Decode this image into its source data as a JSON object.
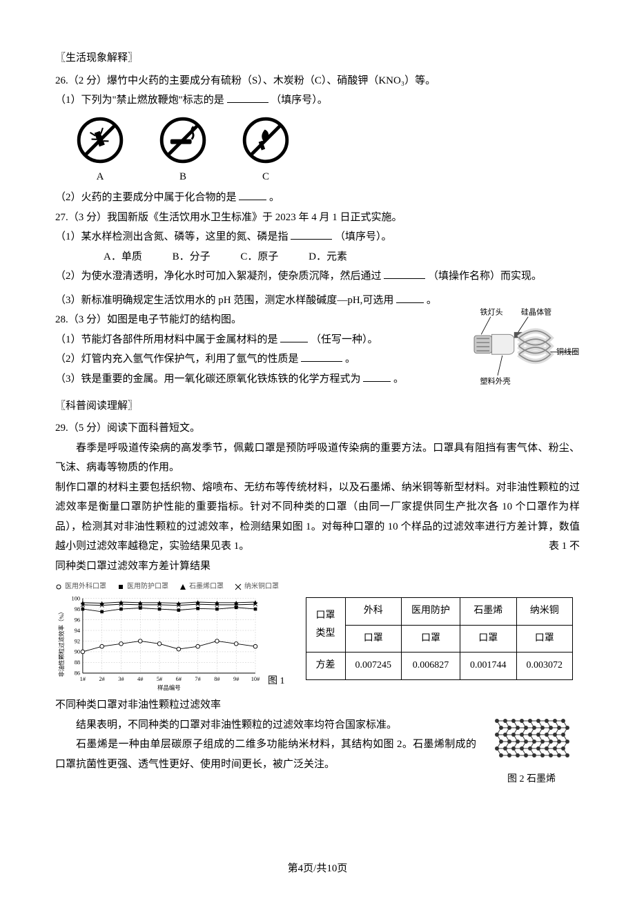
{
  "section1_title": "〖生活现象解释〗",
  "q26": {
    "stem": "26.（2 分）爆竹中火药的主要成分有硫粉（S）、木炭粉（C）、硝酸钾（KNO₃）等。",
    "sub1_pre": "（1）下列为\"禁止燃放鞭炮\"标志的是",
    "sub1_post": "（填序号）。",
    "icons": {
      "A": "A",
      "B": "B",
      "C": "C"
    },
    "sub2_pre": "（2）火药的主要成分中属于化合物的是",
    "sub2_post": "。"
  },
  "q27": {
    "stem": "27.（3 分）我国新版《生活饮用水卫生标准》于 2023 年 4 月 1 日正式实施。",
    "sub1_pre": "（1）某水样检测出含氮、磷等，这里的氮、磷是指",
    "sub1_post": "（填序号）。",
    "opts": {
      "A": "A．单质",
      "B": "B．分子",
      "C": "C．原子",
      "D": "D．元素"
    },
    "sub2_pre": "（2）为使水澄清透明，净化水时可加入絮凝剂，使杂质沉降，然后通过",
    "sub2_post": "（填操作名称）而实现。",
    "sub3_pre": "（3）新标准明确规定生活饮用水的 pH 范围，测定水样酸碱度—pH,可选用",
    "sub3_post": "。"
  },
  "q28": {
    "stem": "28.（3 分）如图是电子节能灯的结构图。",
    "sub1_pre": "（1）节能灯各部件所用材料中属于金属材料的是",
    "sub1_post": "（任写一种）。",
    "sub2_pre": "（2）灯管内充入氩气作保护气，利用了氩气的性质是",
    "sub2_post": "。",
    "sub3_pre": "（3）铁是重要的金属。用一氧化碳还原氧化铁炼铁的化学方程式为",
    "sub3_post": "。",
    "labels": {
      "iron_head": "铁灯头",
      "silicon_tube": "硅晶体管",
      "copper_coil": "铜线圈",
      "plastic_shell": "塑料外壳"
    }
  },
  "section2_title": "〖科普阅读理解〗",
  "q29": {
    "stem": "29.（5 分）阅读下面科普短文。",
    "p1": "春季是呼吸道传染病的高发季节，佩戴口罩是预防呼吸道传染病的重要方法。口罩具有阻挡有害气体、粉尘、飞沫、病毒等物质的作用。",
    "p2": "制作口罩的材料主要包括织物、熔喷布、无纺布等传统材料，以及石墨烯、纳米铜等新型材料。对非油性颗粒的过滤效率是衡量口罩防护性能的重要指标。针对不同种类的口罩（由同一厂家提供同生产批次各 10 个口罩作为样品），检测其对非油性颗粒的过滤效率，检测结果如图 1。对每种口罩的 10 个样品的过滤效率进行方差计算，数值越小则过滤效率越稳定，实验结果见表 1。",
    "table_caption_prefix": "表 1   不",
    "table_caption_rest": "同种类口罩过滤效率方差计算结果",
    "legend": {
      "l1": "医用外科口罩",
      "l2": "医用防护口罩",
      "l3": "石墨烯口罩",
      "l4": "纳米铜口罩"
    },
    "chart": {
      "type": "line",
      "ylabel": "非油性颗粒过滤效率（%）",
      "xlabel": "样品编号",
      "x_ticks": [
        "1#",
        "2#",
        "3#",
        "4#",
        "5#",
        "6#",
        "7#",
        "8#",
        "9#",
        "10#"
      ],
      "y_ticks": [
        86,
        88,
        90,
        92,
        94,
        96,
        98,
        100
      ],
      "ylim": [
        86,
        100
      ],
      "colors": {
        "axis": "#000000",
        "grid": "#bbbbbb"
      },
      "series": [
        {
          "name": "surgical",
          "marker": "hollow-circle",
          "color": "#000000",
          "values": [
            90,
            91,
            91.5,
            92,
            91.5,
            90.5,
            91,
            92,
            91.5,
            91
          ]
        },
        {
          "name": "protective",
          "marker": "square",
          "color": "#000000",
          "values": [
            98,
            97.5,
            98,
            98.2,
            98,
            97.8,
            98.1,
            98,
            98.3,
            98
          ]
        },
        {
          "name": "graphene",
          "marker": "triangle",
          "color": "#000000",
          "values": [
            99.2,
            99.1,
            99.3,
            99.2,
            99.2,
            99.1,
            99.3,
            99.2,
            99.2,
            99.3
          ]
        },
        {
          "name": "nanocu",
          "marker": "x",
          "color": "#000000",
          "values": [
            98.8,
            98.7,
            98.9,
            98.8,
            98.8,
            98.7,
            98.9,
            98.8,
            98.8,
            98.9
          ]
        }
      ],
      "fig1_label": "图 1"
    },
    "table": {
      "header_row": [
        "口罩类型",
        "外科口罩",
        "医用防护口罩",
        "石墨烯口罩",
        "纳米铜口罩"
      ],
      "row_label": "方差",
      "values": [
        "0.007245",
        "0.006827",
        "0.001744",
        "0.003072"
      ]
    },
    "chart_caption": "不同种类口罩对非油性颗粒过滤效率",
    "p3": "结果表明，不同种类的口罩对非油性颗粒的过滤效率均符合国家标准。",
    "p4": "石墨烯是一种由单层碳原子组成的二维多功能纳米材料，其结构如图 2。石墨烯制成的口罩抗菌性更强、透气性更好、使用时间更长，被广泛关注。",
    "fig2_label": "图 2  石墨烯"
  },
  "footer": "第4页/共10页"
}
